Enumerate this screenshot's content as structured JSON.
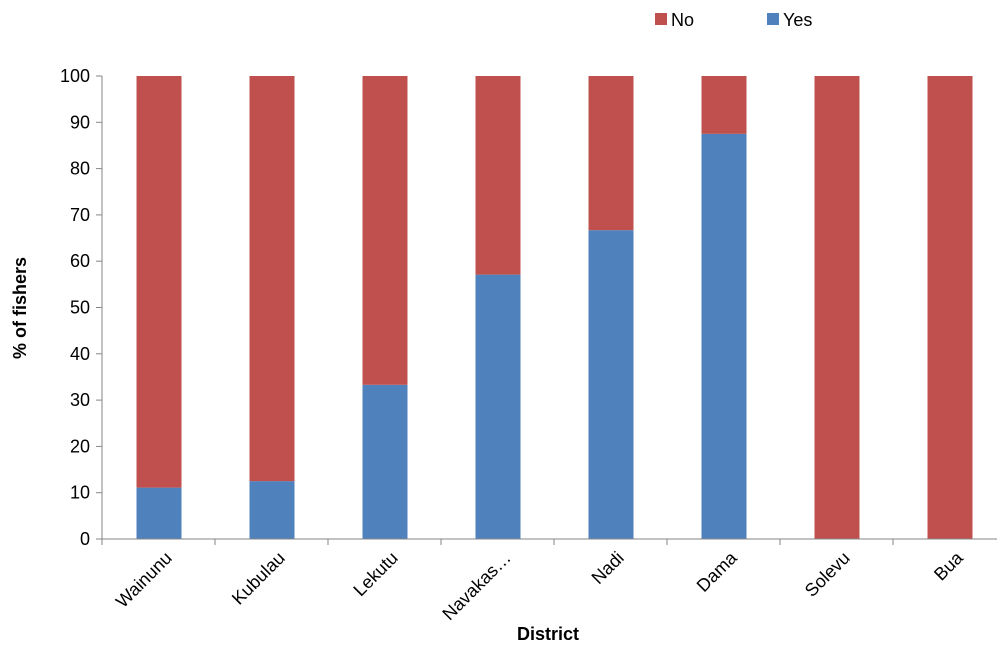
{
  "chart_data": {
    "type": "bar",
    "stacked": true,
    "categories": [
      "Wainunu",
      "Kubulau",
      "Lekutu",
      "Navakas…",
      "Nadi",
      "Dama",
      "Solevu",
      "Bua"
    ],
    "series": [
      {
        "name": "Yes",
        "color": "#4F81BD",
        "values": [
          11.1,
          12.5,
          33.3,
          57.1,
          66.7,
          87.5,
          0,
          0
        ]
      },
      {
        "name": "No",
        "color": "#C0504D",
        "values": [
          88.9,
          87.5,
          66.7,
          42.9,
          33.3,
          12.5,
          100,
          100
        ]
      }
    ],
    "legend_order": [
      "No",
      "Yes"
    ],
    "legend_position": "top-right",
    "xlabel": "District",
    "ylabel": "% of fishers",
    "ylim": [
      0,
      100
    ],
    "yticks": [
      0,
      10,
      20,
      30,
      40,
      50,
      60,
      70,
      80,
      90,
      100
    ],
    "grid": false
  }
}
